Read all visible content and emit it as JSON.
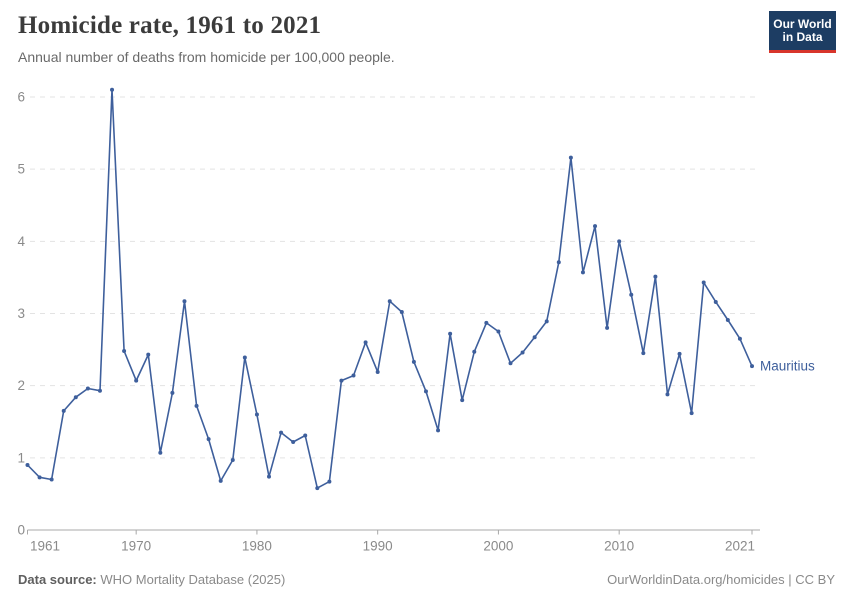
{
  "header": {
    "title": "Homicide rate, 1961 to 2021",
    "subtitle": "Annual number of deaths from homicide per 100,000 people.",
    "logo_line1": "Our World",
    "logo_line2": "in Data"
  },
  "footer": {
    "source_label": "Data source:",
    "source_value": "WHO Mortality Database (2025)",
    "attribution": "OurWorldinData.org/homicides | CC BY"
  },
  "colors": {
    "line": "#3e5f9c",
    "logo_bg": "#1d3d63",
    "logo_red": "#d8352b",
    "grid": "#e3e3e3",
    "axis": "#a8a8a8",
    "tick_text": "#8a8a8a",
    "title_text": "#3b3b3b",
    "subtitle_text": "#6a6a6a",
    "footer_text": "#8a8a8a",
    "footer_label": "#5f5f5f"
  },
  "chart_data": {
    "type": "line",
    "title": "Homicide rate, 1961 to 2021",
    "subtitle": "Annual number of deaths from homicide per 100,000 people.",
    "xlabel": "",
    "ylabel": "",
    "ylim": [
      0,
      6
    ],
    "yticks": [
      0,
      1,
      2,
      3,
      4,
      5,
      6
    ],
    "xticks": [
      1961,
      1970,
      1980,
      1990,
      2000,
      2010,
      2021
    ],
    "grid": "horizontal-dashed",
    "legend_position": "end-of-line-label",
    "x": [
      1961,
      1962,
      1963,
      1964,
      1965,
      1966,
      1967,
      1968,
      1969,
      1970,
      1971,
      1972,
      1973,
      1974,
      1975,
      1976,
      1977,
      1978,
      1979,
      1980,
      1981,
      1982,
      1983,
      1984,
      1985,
      1986,
      1987,
      1988,
      1989,
      1990,
      1991,
      1992,
      1993,
      1994,
      1995,
      1996,
      1997,
      1998,
      1999,
      2000,
      2001,
      2002,
      2003,
      2004,
      2005,
      2006,
      2007,
      2008,
      2009,
      2010,
      2011,
      2012,
      2013,
      2014,
      2015,
      2016,
      2017,
      2018,
      2019,
      2020,
      2021
    ],
    "series": [
      {
        "name": "Mauritius",
        "end_label": "Mauritius",
        "values": [
          0.9,
          0.73,
          0.7,
          1.65,
          1.84,
          1.96,
          1.93,
          6.1,
          2.48,
          2.07,
          2.43,
          1.07,
          1.9,
          3.17,
          1.72,
          1.26,
          0.68,
          0.97,
          2.39,
          1.6,
          0.74,
          1.35,
          1.22,
          1.31,
          0.58,
          0.67,
          2.07,
          2.14,
          2.6,
          2.19,
          3.17,
          3.02,
          2.33,
          1.92,
          1.38,
          2.72,
          1.8,
          2.47,
          2.87,
          2.75,
          2.31,
          2.46,
          2.67,
          2.89,
          3.71,
          5.16,
          3.57,
          4.21,
          2.8,
          4.0,
          3.26,
          2.45,
          3.51,
          1.88,
          2.44,
          1.62,
          3.43,
          3.16,
          2.91,
          2.65,
          2.27
        ]
      }
    ]
  }
}
